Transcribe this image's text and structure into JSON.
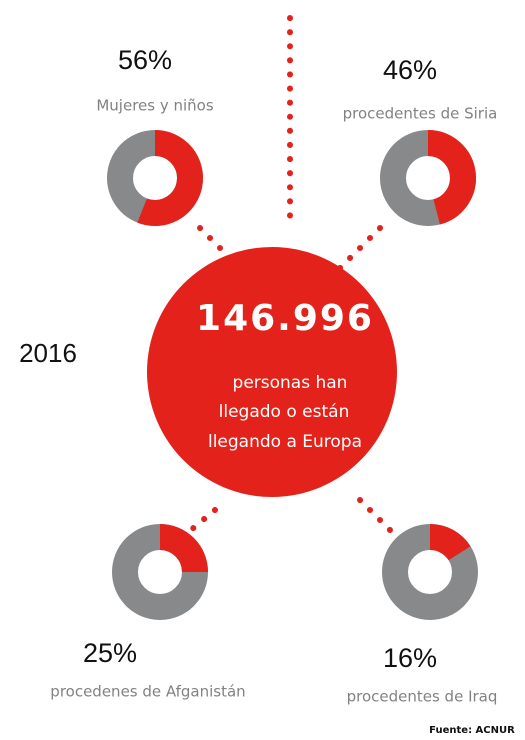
{
  "year": "2016",
  "center": {
    "number": "146.996",
    "lines": [
      "personas han",
      "llegado o están",
      "llegando a Europa"
    ]
  },
  "source": "Fuente: ACNUR",
  "chart_data": [
    {
      "type": "donut",
      "categories": [
        "Mujeres y niños"
      ],
      "values": [
        56
      ],
      "value_labels": [
        "56%"
      ],
      "color": "#e3231b",
      "track_color": "#87898b"
    },
    {
      "type": "donut",
      "categories": [
        "procedentes de Siria"
      ],
      "values": [
        46
      ],
      "value_labels": [
        "46%"
      ],
      "color": "#e3231b",
      "track_color": "#87898b"
    },
    {
      "type": "donut",
      "categories": [
        "procedenes de Afganistán"
      ],
      "values": [
        25
      ],
      "value_labels": [
        "25%"
      ],
      "color": "#e3231b",
      "track_color": "#87898b"
    },
    {
      "type": "donut",
      "categories": [
        "procedentes de Iraq"
      ],
      "values": [
        16
      ],
      "value_labels": [
        "16%"
      ],
      "color": "#e3231b",
      "track_color": "#87898b"
    }
  ]
}
